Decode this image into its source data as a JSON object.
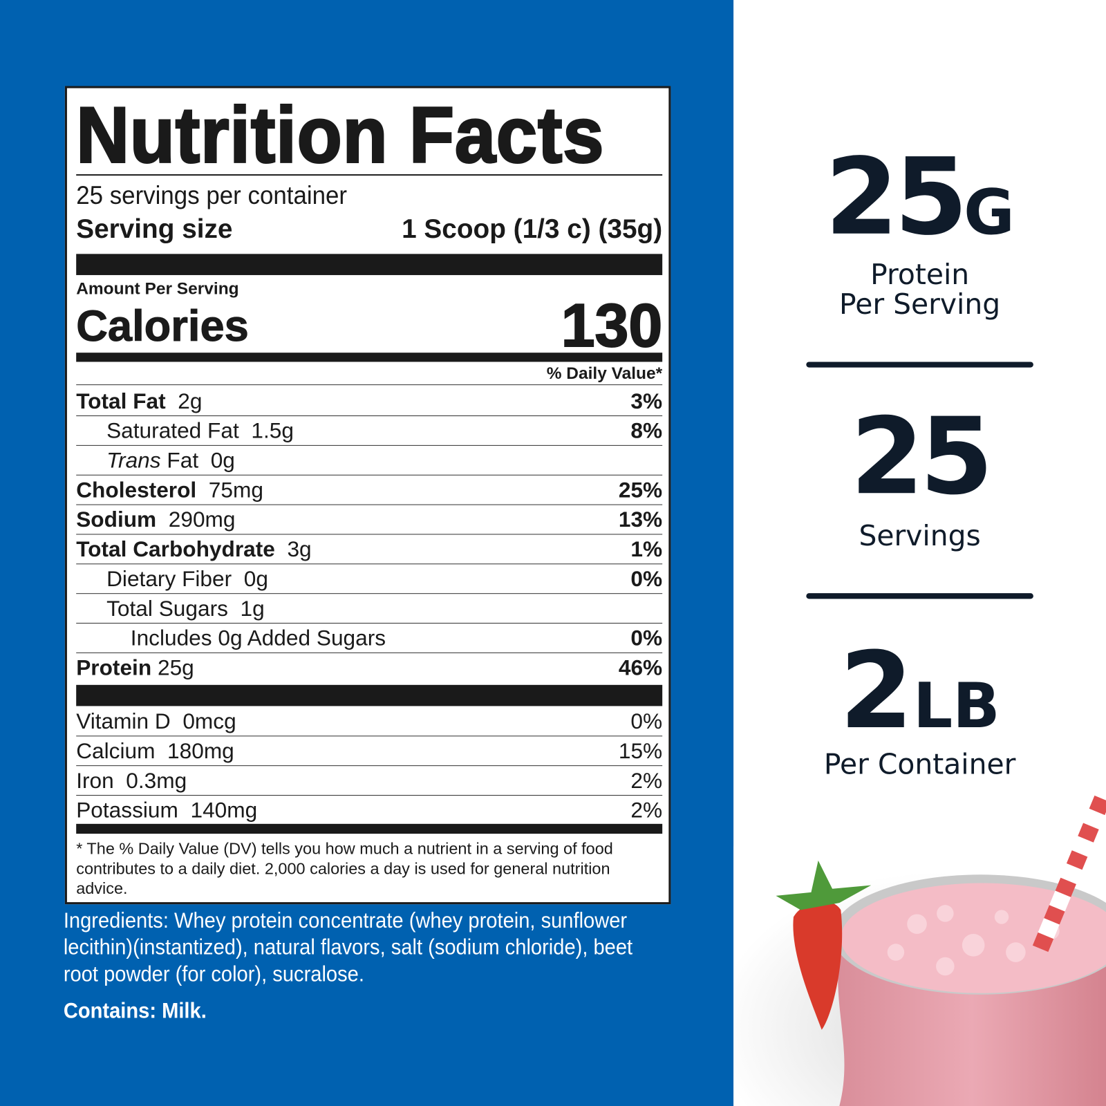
{
  "colors": {
    "background_blue": "#0061b0",
    "dark_text": "#0f1b2a"
  },
  "label": {
    "title": "Nutrition Facts",
    "servings_per_container": "25 servings per container",
    "serving_size_label": "Serving size",
    "serving_size_value": "1 Scoop (1/3 c) (35g)",
    "amount_per_serving": "Amount Per Serving",
    "calories_label": "Calories",
    "calories_value": "130",
    "daily_value_header": "% Daily Value*",
    "nutrients": [
      {
        "name": "Total Fat",
        "amount": "2g",
        "dv": "3%"
      },
      {
        "name": "Saturated Fat",
        "amount": "1.5g",
        "dv": "8%"
      },
      {
        "name": "Trans",
        "name_rest": "Fat",
        "amount": "0g",
        "dv": ""
      },
      {
        "name": "Cholesterol",
        "amount": "75mg",
        "dv": "25%"
      },
      {
        "name": "Sodium",
        "amount": "290mg",
        "dv": "13%"
      },
      {
        "name": "Total Carbohydrate",
        "amount": "3g",
        "dv": "1%"
      },
      {
        "name": "Dietary Fiber",
        "amount": "0g",
        "dv": "0%"
      },
      {
        "name": "Total Sugars",
        "amount": "1g",
        "dv": ""
      },
      {
        "name": "Includes 0g Added Sugars",
        "amount": "",
        "dv": "0%"
      },
      {
        "name": "Protein",
        "amount": "25g",
        "dv": "46%"
      }
    ],
    "vitamins": [
      {
        "name": "Vitamin D",
        "amount": "0mcg",
        "dv": "0%"
      },
      {
        "name": "Calcium",
        "amount": "180mg",
        "dv": "15%"
      },
      {
        "name": "Iron",
        "amount": "0.3mg",
        "dv": "2%"
      },
      {
        "name": "Potassium",
        "amount": "140mg",
        "dv": "2%"
      }
    ],
    "footnote": "* The % Daily Value (DV) tells you how much a nutrient in a serving of food contributes to a daily diet. 2,000 calories a day is used for general nutrition advice."
  },
  "ingredients": "Ingredients: Whey protein concentrate (whey protein, sunflower lecithin)(instantized), natural flavors, salt (sodium chloride), beet root powder (for color), sucralose.",
  "contains": "Contains: Milk.",
  "highlights": [
    {
      "value": "25",
      "unit": "G",
      "caption_line1": "Protein",
      "caption_line2": "Per Serving"
    },
    {
      "value": "25",
      "unit": "",
      "caption_line1": "Servings",
      "caption_line2": ""
    },
    {
      "value": "2",
      "unit": "LB",
      "caption_line1": "Per Container",
      "caption_line2": ""
    }
  ]
}
